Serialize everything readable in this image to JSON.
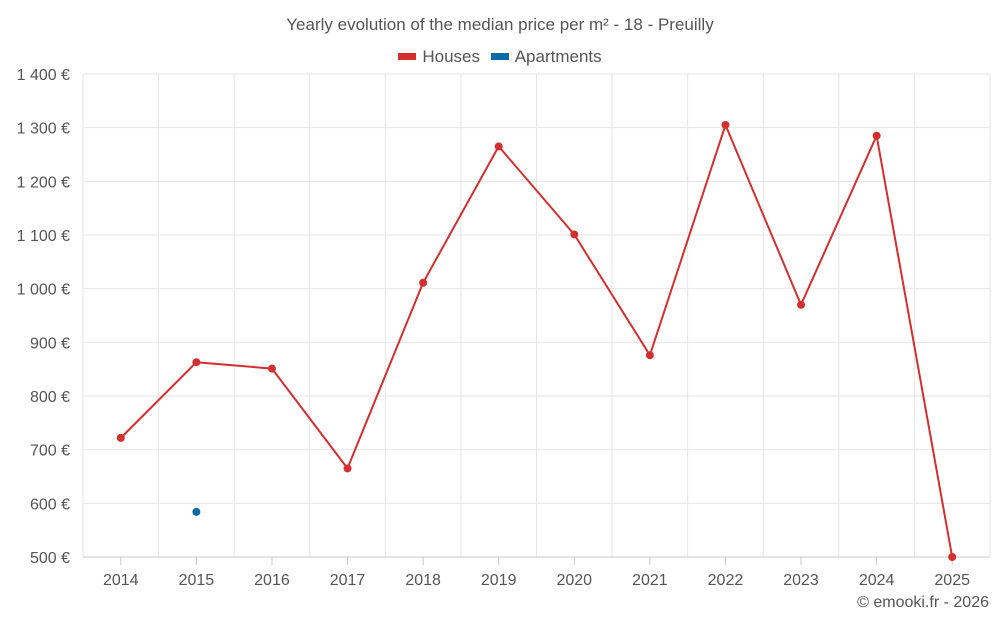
{
  "chart_data": {
    "type": "line",
    "title": "Yearly evolution of the median price per m² - 18 - Preuilly",
    "categories": [
      "2014",
      "2015",
      "2016",
      "2017",
      "2018",
      "2019",
      "2020",
      "2021",
      "2022",
      "2023",
      "2024",
      "2025"
    ],
    "y_ticks": [
      "500 €",
      "600 €",
      "700 €",
      "800 €",
      "900 €",
      "1 000 €",
      "1 100 €",
      "1 200 €",
      "1 300 €",
      "1 400 €"
    ],
    "ylim": [
      500,
      1400
    ],
    "grid": true,
    "legend_position": "top-center",
    "series": [
      {
        "name": "Houses",
        "color": "#d32f2f",
        "values": [
          722,
          863,
          851,
          665,
          1011,
          1265,
          1101,
          876,
          1305,
          970,
          1285,
          500
        ]
      },
      {
        "name": "Apartments",
        "color": "#0d6aa8",
        "values": [
          null,
          584,
          null,
          null,
          null,
          null,
          null,
          null,
          null,
          null,
          null,
          null
        ]
      }
    ]
  },
  "credit": "© emooki.fr - 2026"
}
